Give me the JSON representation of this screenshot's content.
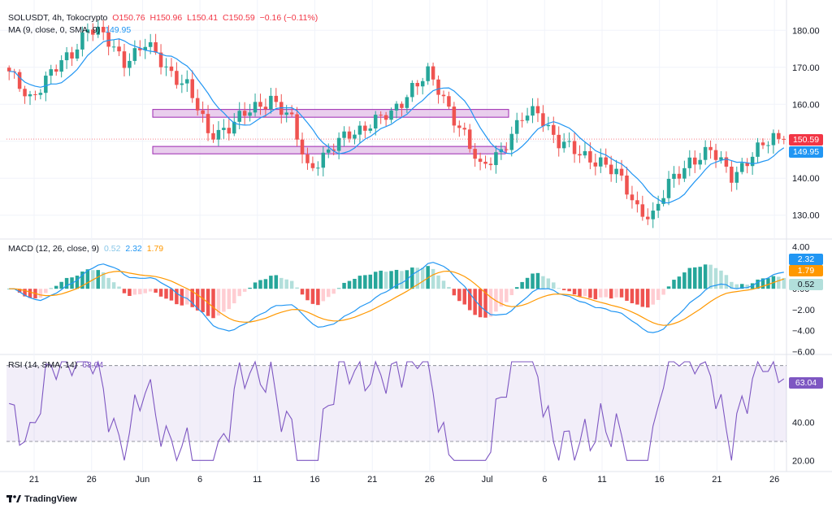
{
  "header": {
    "symbol": "SOLUSDT, 4h, Tokocrypto",
    "open": "O150.76",
    "high": "H150.96",
    "low": "L150.41",
    "close": "C150.59",
    "change": "−0.16 (−0.11%)",
    "ma_label": "MA (9, close, 0, SMA, 9)",
    "ma_value": "149.95",
    "macd_label": "MACD (12, 26, close, 9)",
    "macd_hist": "0.52",
    "macd_line": "2.32",
    "macd_signal": "1.79",
    "rsi_label": "RSI (14, SMA, 14)",
    "rsi_value": "63.04"
  },
  "badges": {
    "price": "150.59",
    "ma": "149.95",
    "macd_line": "2.32",
    "macd_signal": "1.79",
    "macd_hist": "0.52",
    "rsi": "63.04"
  },
  "footer": {
    "brand": "TradingView"
  },
  "colors": {
    "up": "#26a69a",
    "down": "#ef5350",
    "ma": "#2196f3",
    "macd": "#2196f3",
    "signal": "#ff9800",
    "rsi": "#7e57c2",
    "zone_fill": "#e1bee7",
    "zone_stroke": "#9c27b0"
  },
  "chart_data": [
    {
      "type": "candlestick",
      "title": "SOLUSDT, 4h, Tokocrypto",
      "x_ticks": [
        "21",
        "26",
        "Jun",
        "6",
        "11",
        "16",
        "21",
        "26",
        "Jul",
        "6",
        "11",
        "16",
        "21",
        "26"
      ],
      "y_ticks": [
        "180.00",
        "170.00",
        "160.00",
        "150.00",
        "140.00",
        "130.00"
      ],
      "ylim": [
        124,
        186
      ],
      "last_close": 150.59,
      "zones": [
        {
          "label": "resistance",
          "from": 156.5,
          "to": 158.6
        },
        {
          "label": "support",
          "from": 146.6,
          "to": 148.6
        }
      ],
      "anchors": [
        {
          "x": 0,
          "close": 168
        },
        {
          "x": 4,
          "close": 162
        },
        {
          "x": 8,
          "close": 168
        },
        {
          "x": 12,
          "close": 174
        },
        {
          "x": 15,
          "close": 181
        },
        {
          "x": 18,
          "close": 178
        },
        {
          "x": 22,
          "close": 172
        },
        {
          "x": 26,
          "close": 176
        },
        {
          "x": 30,
          "close": 170
        },
        {
          "x": 34,
          "close": 165
        },
        {
          "x": 38,
          "close": 152
        },
        {
          "x": 42,
          "close": 154
        },
        {
          "x": 46,
          "close": 158
        },
        {
          "x": 50,
          "close": 162
        },
        {
          "x": 54,
          "close": 155
        },
        {
          "x": 57,
          "close": 143
        },
        {
          "x": 61,
          "close": 147
        },
        {
          "x": 65,
          "close": 152
        },
        {
          "x": 69,
          "close": 155
        },
        {
          "x": 73,
          "close": 157
        },
        {
          "x": 77,
          "close": 165
        },
        {
          "x": 80,
          "close": 168
        },
        {
          "x": 84,
          "close": 159
        },
        {
          "x": 87,
          "close": 152
        },
        {
          "x": 90,
          "close": 142
        },
        {
          "x": 94,
          "close": 148
        },
        {
          "x": 98,
          "close": 156
        },
        {
          "x": 101,
          "close": 158
        },
        {
          "x": 105,
          "close": 150
        },
        {
          "x": 109,
          "close": 146
        },
        {
          "x": 113,
          "close": 145
        },
        {
          "x": 116,
          "close": 141
        },
        {
          "x": 120,
          "close": 132
        },
        {
          "x": 123,
          "close": 130
        },
        {
          "x": 126,
          "close": 138
        },
        {
          "x": 130,
          "close": 145
        },
        {
          "x": 134,
          "close": 147
        },
        {
          "x": 138,
          "close": 141
        },
        {
          "x": 142,
          "close": 146
        },
        {
          "x": 146,
          "close": 151
        },
        {
          "x": 148,
          "close": 150.59
        }
      ]
    },
    {
      "type": "line",
      "title": "MACD (12, 26, close, 9)",
      "y_ticks": [
        "4.00",
        "2.00",
        "0.00",
        "−2.00",
        "−4.00",
        "−6.00"
      ],
      "ylim": [
        -6.2,
        4.6
      ],
      "series": [
        {
          "name": "MACD",
          "last": 2.32
        },
        {
          "name": "Signal",
          "last": 1.79
        },
        {
          "name": "Histogram",
          "last": 0.52
        }
      ]
    },
    {
      "type": "line",
      "title": "RSI (14, SMA, 14)",
      "y_ticks": [
        "60.00",
        "40.00",
        "20.00"
      ],
      "ylim": [
        15,
        75
      ],
      "bands": [
        30,
        70
      ],
      "last": 63.04
    }
  ]
}
